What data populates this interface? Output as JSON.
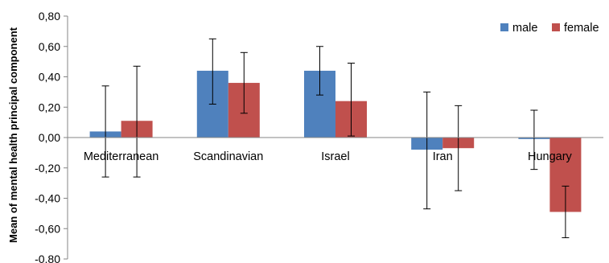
{
  "chart_data": {
    "type": "bar",
    "title": "",
    "xlabel": "",
    "ylabel": "Mean of mental health principal component",
    "ylim": [
      -0.8,
      0.8
    ],
    "yticks": [
      0.8,
      0.6,
      0.4,
      0.2,
      0.0,
      -0.2,
      -0.4,
      -0.6,
      -0.8
    ],
    "ytick_labels": [
      "0,80",
      "0,60",
      "0,40",
      "0,20",
      "0,00",
      "-0,20",
      "-0,40",
      "-0,60",
      "-0,80"
    ],
    "categories": [
      "Mediterranean",
      "Scandinavian",
      "Israel",
      "Iran",
      "Hungary"
    ],
    "series": [
      {
        "name": "male",
        "color": "#4F81BD",
        "values": [
          0.04,
          0.44,
          0.44,
          -0.08,
          -0.01
        ],
        "error_low": [
          -0.26,
          0.22,
          0.28,
          -0.47,
          -0.21
        ],
        "error_high": [
          0.34,
          0.65,
          0.6,
          0.3,
          0.18
        ]
      },
      {
        "name": "female",
        "color": "#C0504D",
        "values": [
          0.11,
          0.36,
          0.24,
          -0.07,
          -0.49
        ],
        "error_low": [
          -0.26,
          0.16,
          0.01,
          -0.35,
          -0.66
        ],
        "error_high": [
          0.47,
          0.56,
          0.49,
          0.21,
          -0.32
        ]
      }
    ],
    "grid": false,
    "legend_position": "top-right"
  }
}
